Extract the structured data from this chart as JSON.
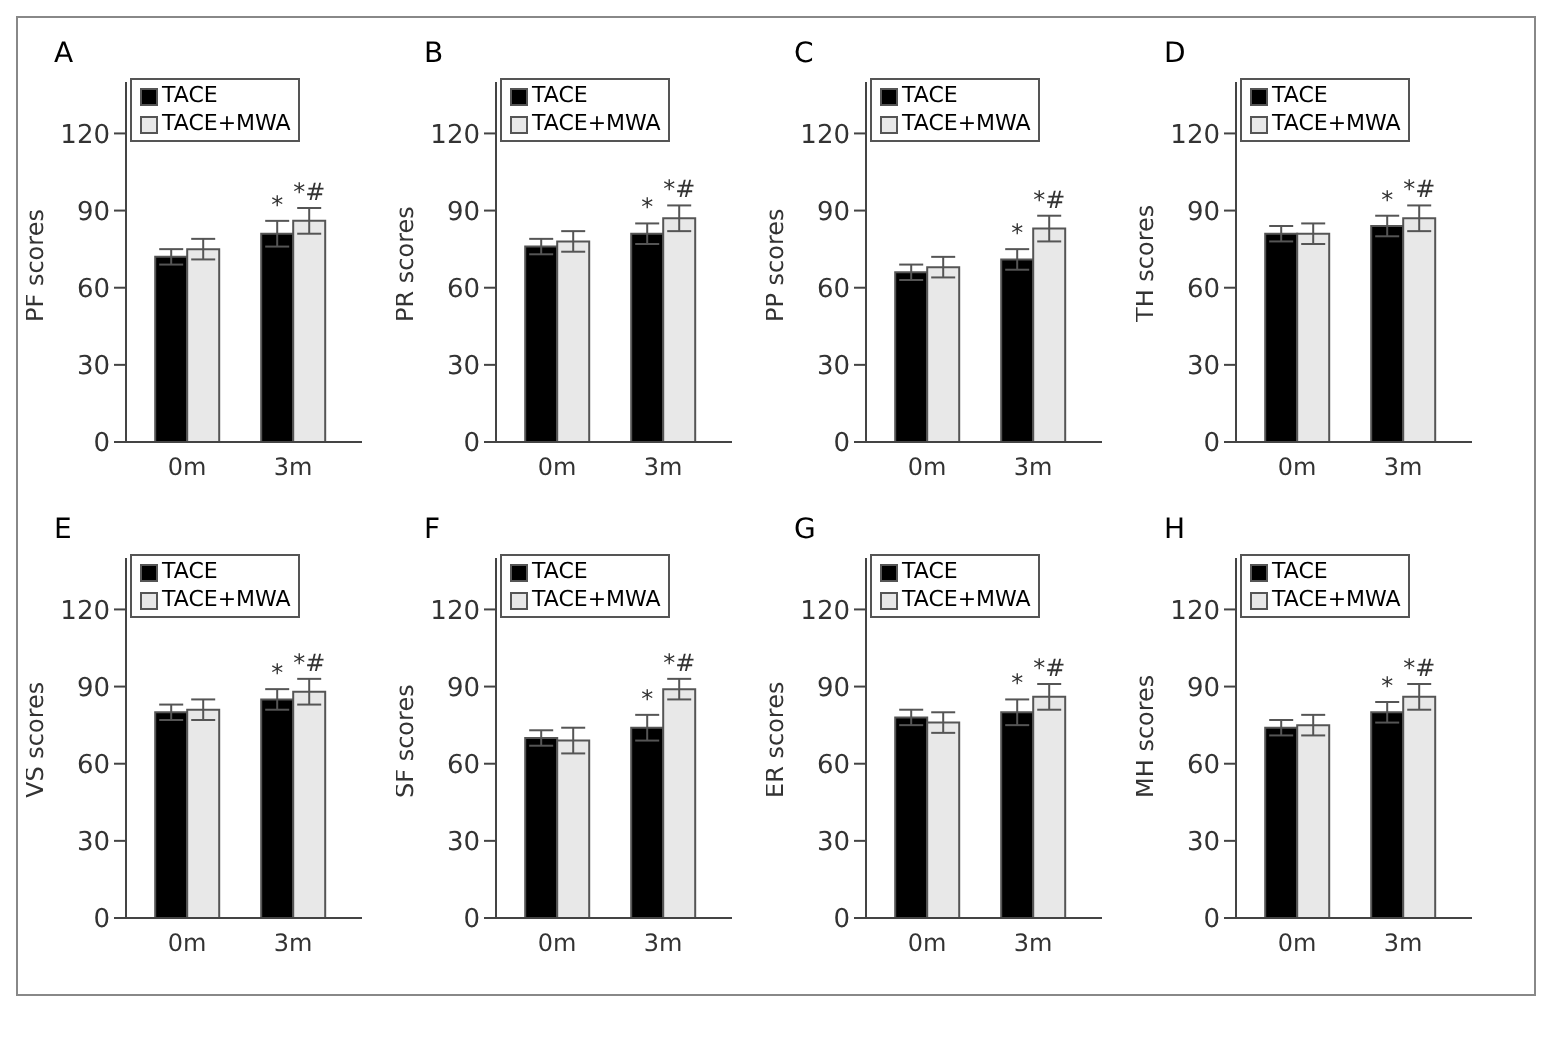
{
  "chart_data": [
    {
      "type": "bar",
      "title": "A",
      "ylabel": "PF scores",
      "categories": [
        "0m",
        "3m"
      ],
      "series": [
        {
          "name": "TACE",
          "color": "#000000",
          "values": [
            72,
            81
          ],
          "errors": [
            3,
            5
          ]
        },
        {
          "name": "TACE+MWA",
          "color": "#e8e8e8",
          "values": [
            75,
            86
          ],
          "errors": [
            4,
            5
          ]
        }
      ],
      "ylim": [
        0,
        140
      ],
      "yticks": [
        0,
        30,
        60,
        90,
        120
      ],
      "legend": "top left",
      "annotations": [
        {
          "text": "*",
          "x": "3m",
          "y": 81
        },
        {
          "text": "*#",
          "x": "3m",
          "y": 86
        }
      ]
    },
    {
      "type": "bar",
      "title": "B",
      "ylabel": "PR scores",
      "categories": [
        "0m",
        "3m"
      ],
      "series": [
        {
          "name": "TACE",
          "color": "#000000",
          "values": [
            76,
            81
          ],
          "errors": [
            3,
            4
          ]
        },
        {
          "name": "TACE+MWA",
          "color": "#e8e8e8",
          "values": [
            78,
            87
          ],
          "errors": [
            4,
            5
          ]
        }
      ],
      "ylim": [
        0,
        140
      ],
      "yticks": [
        0,
        30,
        60,
        90,
        120
      ],
      "legend": "top left",
      "annotations": [
        {
          "text": "*",
          "x": "3m",
          "y": 81
        },
        {
          "text": "*#",
          "x": "3m",
          "y": 87
        }
      ]
    },
    {
      "type": "bar",
      "title": "C",
      "ylabel": "PP scores",
      "categories": [
        "0m",
        "3m"
      ],
      "series": [
        {
          "name": "TACE",
          "color": "#000000",
          "values": [
            66,
            71
          ],
          "errors": [
            3,
            4
          ]
        },
        {
          "name": "TACE+MWA",
          "color": "#e8e8e8",
          "values": [
            68,
            83
          ],
          "errors": [
            4,
            5
          ]
        }
      ],
      "ylim": [
        0,
        140
      ],
      "yticks": [
        0,
        30,
        60,
        90,
        120
      ],
      "legend": "top left",
      "annotations": [
        {
          "text": "*",
          "x": "3m",
          "y": 71
        },
        {
          "text": "*#",
          "x": "3m",
          "y": 83
        }
      ]
    },
    {
      "type": "bar",
      "title": "D",
      "ylabel": "TH scores",
      "categories": [
        "0m",
        "3m"
      ],
      "series": [
        {
          "name": "TACE",
          "color": "#000000",
          "values": [
            81,
            84
          ],
          "errors": [
            3,
            4
          ]
        },
        {
          "name": "TACE+MWA",
          "color": "#e8e8e8",
          "values": [
            81,
            87
          ],
          "errors": [
            4,
            5
          ]
        }
      ],
      "ylim": [
        0,
        140
      ],
      "yticks": [
        0,
        30,
        60,
        90,
        120
      ],
      "legend": "top left",
      "annotations": [
        {
          "text": "*",
          "x": "3m",
          "y": 84
        },
        {
          "text": "*#",
          "x": "3m",
          "y": 87
        }
      ]
    },
    {
      "type": "bar",
      "title": "E",
      "ylabel": "VS scores",
      "categories": [
        "0m",
        "3m"
      ],
      "series": [
        {
          "name": "TACE",
          "color": "#000000",
          "values": [
            80,
            85
          ],
          "errors": [
            3,
            4
          ]
        },
        {
          "name": "TACE+MWA",
          "color": "#e8e8e8",
          "values": [
            81,
            88
          ],
          "errors": [
            4,
            5
          ]
        }
      ],
      "ylim": [
        0,
        140
      ],
      "yticks": [
        0,
        30,
        60,
        90,
        120
      ],
      "legend": "top left",
      "annotations": [
        {
          "text": "*",
          "x": "3m",
          "y": 85
        },
        {
          "text": "*#",
          "x": "3m",
          "y": 88
        }
      ]
    },
    {
      "type": "bar",
      "title": "F",
      "ylabel": "SF scores",
      "categories": [
        "0m",
        "3m"
      ],
      "series": [
        {
          "name": "TACE",
          "color": "#000000",
          "values": [
            70,
            74
          ],
          "errors": [
            3,
            5
          ]
        },
        {
          "name": "TACE+MWA",
          "color": "#e8e8e8",
          "values": [
            69,
            89
          ],
          "errors": [
            5,
            4
          ]
        }
      ],
      "ylim": [
        0,
        140
      ],
      "yticks": [
        0,
        30,
        60,
        90,
        120
      ],
      "legend": "top left",
      "annotations": [
        {
          "text": "*",
          "x": "3m",
          "y": 74
        },
        {
          "text": "*#",
          "x": "3m",
          "y": 89
        }
      ]
    },
    {
      "type": "bar",
      "title": "G",
      "ylabel": "ER scores",
      "categories": [
        "0m",
        "3m"
      ],
      "series": [
        {
          "name": "TACE",
          "color": "#000000",
          "values": [
            78,
            80
          ],
          "errors": [
            3,
            5
          ]
        },
        {
          "name": "TACE+MWA",
          "color": "#e8e8e8",
          "values": [
            76,
            86
          ],
          "errors": [
            4,
            5
          ]
        }
      ],
      "ylim": [
        0,
        140
      ],
      "yticks": [
        0,
        30,
        60,
        90,
        120
      ],
      "legend": "top left",
      "annotations": [
        {
          "text": "*",
          "x": "3m",
          "y": 80
        },
        {
          "text": "*#",
          "x": "3m",
          "y": 86
        }
      ]
    },
    {
      "type": "bar",
      "title": "H",
      "ylabel": "MH scores",
      "categories": [
        "0m",
        "3m"
      ],
      "series": [
        {
          "name": "TACE",
          "color": "#000000",
          "values": [
            74,
            80
          ],
          "errors": [
            3,
            4
          ]
        },
        {
          "name": "TACE+MWA",
          "color": "#e8e8e8",
          "values": [
            75,
            86
          ],
          "errors": [
            4,
            5
          ]
        }
      ],
      "ylim": [
        0,
        140
      ],
      "yticks": [
        0,
        30,
        60,
        90,
        120
      ],
      "legend": "top left",
      "annotations": [
        {
          "text": "*",
          "x": "3m",
          "y": 80
        },
        {
          "text": "*#",
          "x": "3m",
          "y": 86
        }
      ]
    }
  ]
}
